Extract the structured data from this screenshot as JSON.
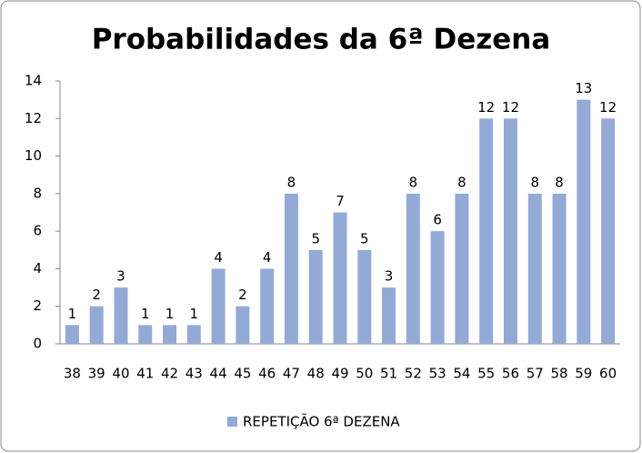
{
  "chart_data": {
    "type": "bar",
    "title": "Probabilidades da 6ª Dezena",
    "categories": [
      "38",
      "39",
      "40",
      "41",
      "42",
      "43",
      "44",
      "45",
      "46",
      "47",
      "48",
      "49",
      "50",
      "51",
      "52",
      "53",
      "54",
      "55",
      "56",
      "57",
      "58",
      "59",
      "60"
    ],
    "series": [
      {
        "name": "REPETIÇÃO 6ª DEZENA",
        "color": "#94aad6",
        "values": [
          1,
          2,
          3,
          1,
          1,
          1,
          4,
          2,
          4,
          8,
          5,
          7,
          5,
          3,
          8,
          6,
          8,
          12,
          12,
          8,
          8,
          13,
          12
        ]
      }
    ],
    "ylim": [
      0,
      14
    ],
    "yticks": [
      0,
      2,
      4,
      6,
      8,
      10,
      12,
      14
    ],
    "grid": false,
    "legend": "bottom"
  }
}
